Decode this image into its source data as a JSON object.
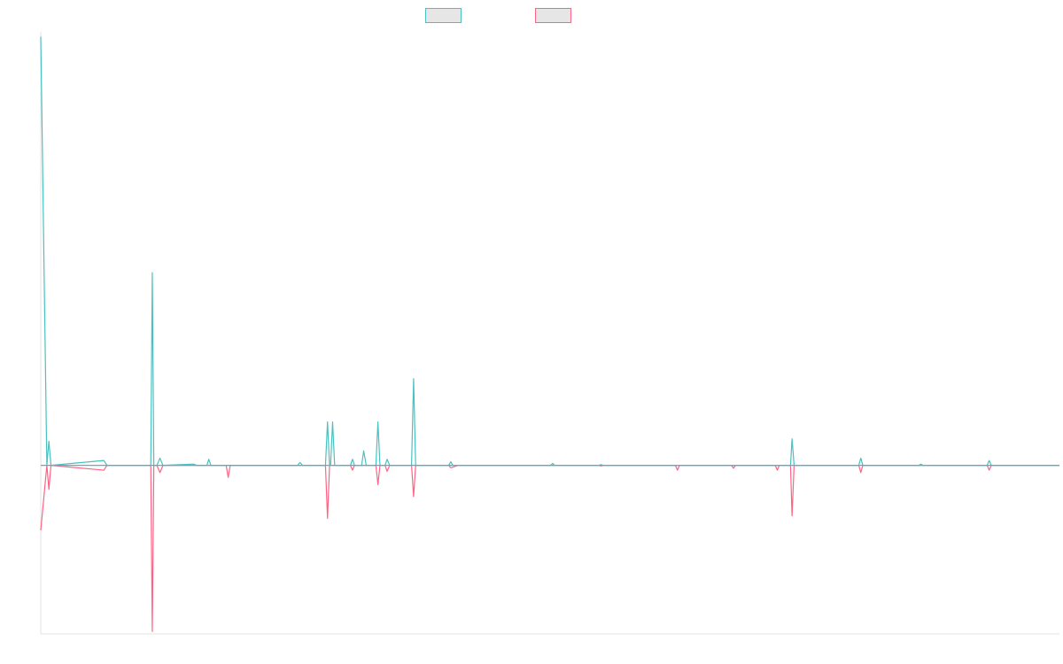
{
  "chart_data": {
    "type": "line",
    "title": "",
    "xlabel": "",
    "ylabel": "",
    "legend_placement": "top-center",
    "grid": false,
    "axis_labels_visible": false,
    "xlim": [
      0,
      200
    ],
    "ylim": [
      -7,
      18
    ],
    "series": [
      {
        "color": "#4bc0c0",
        "values": [
          [
            0,
            17.8
          ],
          [
            1.2,
            0.0
          ],
          [
            1.6,
            1.0
          ],
          [
            2.0,
            0.0
          ],
          [
            12.4,
            0.2
          ],
          [
            13.0,
            0.0
          ],
          [
            21.6,
            0.0
          ],
          [
            21.9,
            8.0
          ],
          [
            22.2,
            0.0
          ],
          [
            22.8,
            0.0
          ],
          [
            23.4,
            0.3
          ],
          [
            24.0,
            0.0
          ],
          [
            30.0,
            0.05
          ],
          [
            30.6,
            0.0
          ],
          [
            32.6,
            0.0
          ],
          [
            33.0,
            0.25
          ],
          [
            33.4,
            0.0
          ],
          [
            50.4,
            0.0
          ],
          [
            50.9,
            0.12
          ],
          [
            51.4,
            0.0
          ],
          [
            55.9,
            0.0
          ],
          [
            56.3,
            1.8
          ],
          [
            56.7,
            0.0
          ],
          [
            56.9,
            0.0
          ],
          [
            57.3,
            1.8
          ],
          [
            57.7,
            0.0
          ],
          [
            60.8,
            0.0
          ],
          [
            61.2,
            0.25
          ],
          [
            61.6,
            0.0
          ],
          [
            63.0,
            0.0
          ],
          [
            63.4,
            0.6
          ],
          [
            63.9,
            0.0
          ],
          [
            65.8,
            0.0
          ],
          [
            66.2,
            1.8
          ],
          [
            66.6,
            0.0
          ],
          [
            67.6,
            0.0
          ],
          [
            68.0,
            0.25
          ],
          [
            68.5,
            0.0
          ],
          [
            72.8,
            0.0
          ],
          [
            73.2,
            3.6
          ],
          [
            73.6,
            0.0
          ],
          [
            80.1,
            0.0
          ],
          [
            80.5,
            0.15
          ],
          [
            80.9,
            0.0
          ],
          [
            100.1,
            0.0
          ],
          [
            100.5,
            0.08
          ],
          [
            100.9,
            0.0
          ],
          [
            109.6,
            0.0
          ],
          [
            110.0,
            0.03
          ],
          [
            110.4,
            0.0
          ],
          [
            131.3,
            0.0
          ],
          [
            132.3,
            0.0
          ],
          [
            147.2,
            0.0
          ],
          [
            147.5,
            1.1
          ],
          [
            147.9,
            0.0
          ],
          [
            160.6,
            0.0
          ],
          [
            161.0,
            0.3
          ],
          [
            161.4,
            0.0
          ],
          [
            172.4,
            0.0
          ],
          [
            172.8,
            0.05
          ],
          [
            173.2,
            0.0
          ],
          [
            185.8,
            0.0
          ],
          [
            186.2,
            0.2
          ],
          [
            186.6,
            0.0
          ],
          [
            200.0,
            0.0
          ]
        ]
      },
      {
        "color": "#ff6384",
        "values": [
          [
            0,
            -2.7
          ],
          [
            1.2,
            0.0
          ],
          [
            1.6,
            -1.0
          ],
          [
            2.0,
            0.0
          ],
          [
            12.4,
            -0.2
          ],
          [
            13.0,
            0.0
          ],
          [
            21.6,
            0.0
          ],
          [
            21.9,
            -6.9
          ],
          [
            22.2,
            0.0
          ],
          [
            22.8,
            0.0
          ],
          [
            23.4,
            -0.3
          ],
          [
            24.0,
            0.0
          ],
          [
            36.4,
            0.0
          ],
          [
            36.8,
            -0.5
          ],
          [
            37.2,
            0.0
          ],
          [
            55.9,
            0.0
          ],
          [
            56.3,
            -2.2
          ],
          [
            56.7,
            0.0
          ],
          [
            60.8,
            0.0
          ],
          [
            61.2,
            -0.2
          ],
          [
            61.6,
            0.0
          ],
          [
            65.8,
            0.0
          ],
          [
            66.2,
            -0.8
          ],
          [
            66.6,
            0.0
          ],
          [
            67.6,
            0.0
          ],
          [
            68.0,
            -0.25
          ],
          [
            68.5,
            0.0
          ],
          [
            72.8,
            0.0
          ],
          [
            73.2,
            -1.3
          ],
          [
            73.6,
            0.0
          ],
          [
            80.1,
            0.0
          ],
          [
            80.5,
            -0.1
          ],
          [
            81.3,
            -0.05
          ],
          [
            81.9,
            0.0
          ],
          [
            109.6,
            0.0
          ],
          [
            110.0,
            -0.03
          ],
          [
            110.4,
            0.0
          ],
          [
            124.6,
            0.0
          ],
          [
            125.0,
            -0.2
          ],
          [
            125.4,
            0.0
          ],
          [
            135.6,
            0.0
          ],
          [
            136.0,
            -0.12
          ],
          [
            136.4,
            0.0
          ],
          [
            144.2,
            0.0
          ],
          [
            144.6,
            -0.2
          ],
          [
            145.0,
            0.0
          ],
          [
            147.2,
            0.0
          ],
          [
            147.5,
            -2.1
          ],
          [
            147.9,
            0.0
          ],
          [
            160.6,
            0.0
          ],
          [
            161.0,
            -0.3
          ],
          [
            161.4,
            0.0
          ],
          [
            185.8,
            0.0
          ],
          [
            186.2,
            -0.2
          ],
          [
            186.6,
            0.0
          ],
          [
            200.0,
            0.0
          ]
        ]
      }
    ]
  }
}
